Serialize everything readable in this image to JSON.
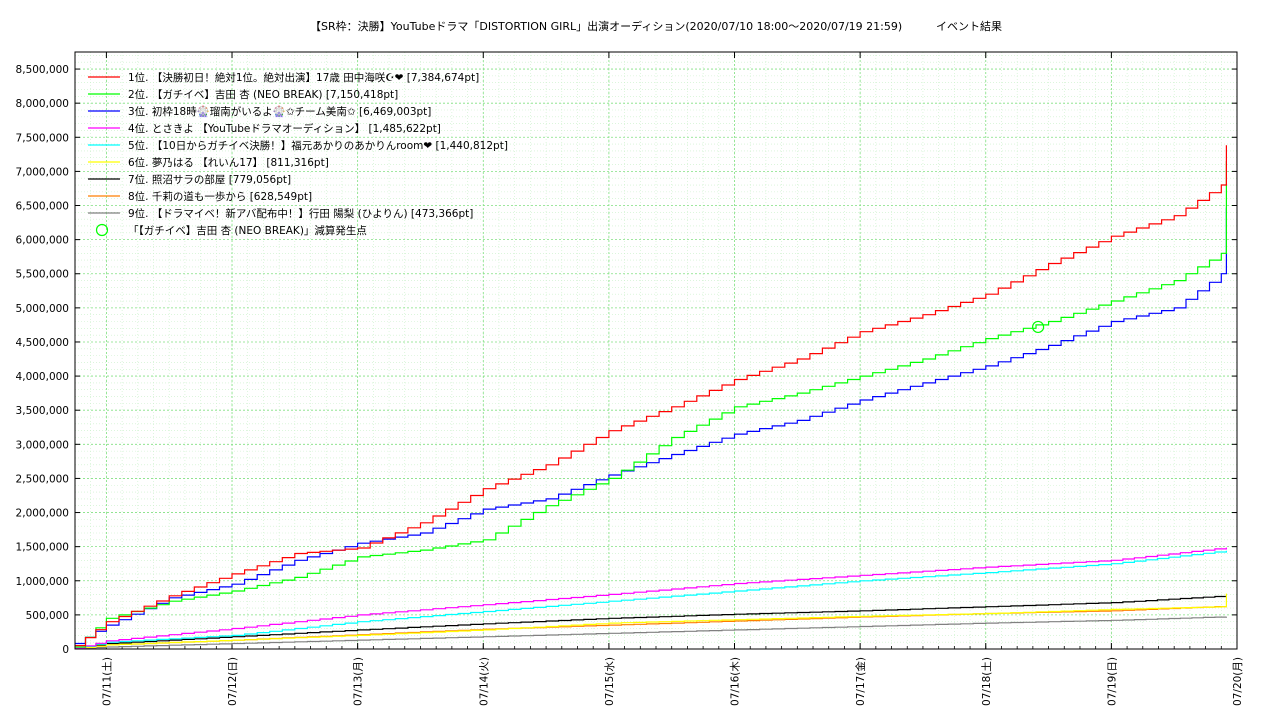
{
  "chart_data": {
    "type": "line",
    "title": "【SR枠：決勝】YouTubeドラマ「DISTORTION GIRL」出演オーディション(2020/07/10 18:00〜2020/07/19 21:59)",
    "subtitle": "イベント結果",
    "ylim": [
      0,
      8750000
    ],
    "yticks": [
      0,
      500000,
      1000000,
      1500000,
      2000000,
      2500000,
      3000000,
      3500000,
      4000000,
      4500000,
      5000000,
      5500000,
      6000000,
      6500000,
      7000000,
      7500000,
      8000000,
      8500000
    ],
    "ytick_labels": [
      "0",
      "500,000",
      "1,000,000",
      "1,500,000",
      "2,000,000",
      "2,500,000",
      "3,000,000",
      "3,500,000",
      "4,000,000",
      "4,500,000",
      "5,000,000",
      "5,500,000",
      "6,000,000",
      "6,500,000",
      "7,000,000",
      "7,500,000",
      "8,000,000",
      "8,500,000"
    ],
    "xlim": [
      "2020-07-10 18:00",
      "2020-07-20 00:00"
    ],
    "xticks": [
      "2020-07-11",
      "2020-07-12",
      "2020-07-13",
      "2020-07-14",
      "2020-07-15",
      "2020-07-16",
      "2020-07-17",
      "2020-07-18",
      "2020-07-19",
      "2020-07-20"
    ],
    "xtick_labels": [
      "07/11(土)",
      "07/12(日)",
      "07/13(月)",
      "07/14(火)",
      "07/15(水)",
      "07/16(木)",
      "07/17(金)",
      "07/18(土)",
      "07/19(日)",
      "07/20(月)"
    ],
    "grid": true,
    "legend_position": "top-left",
    "series": [
      {
        "name": "1位. 【決勝初日！絶対1位。絶対出演】17歳 田中海咲☪︎❤︎ [7,384,674pt]",
        "color": "#ff0000",
        "x": [
          "2020-07-10 18:00",
          "2020-07-11 00:00",
          "2020-07-11 12:00",
          "2020-07-12 00:00",
          "2020-07-12 12:00",
          "2020-07-13 00:00",
          "2020-07-13 12:00",
          "2020-07-14 00:00",
          "2020-07-14 12:00",
          "2020-07-15 00:00",
          "2020-07-15 12:00",
          "2020-07-16 00:00",
          "2020-07-16 12:00",
          "2020-07-17 00:00",
          "2020-07-17 12:00",
          "2020-07-18 00:00",
          "2020-07-18 12:00",
          "2020-07-19 00:00",
          "2020-07-19 12:00",
          "2020-07-19 21:00",
          "2020-07-19 21:59"
        ],
        "y": [
          50000,
          400000,
          780000,
          1100000,
          1400000,
          1480000,
          1850000,
          2350000,
          2700000,
          3200000,
          3550000,
          3950000,
          4250000,
          4650000,
          4900000,
          5200000,
          5650000,
          6050000,
          6350000,
          6800000,
          7384674
        ]
      },
      {
        "name": "2位. 【ガチイベ】吉田 杏 (NEO BREAK) [7,150,418pt]",
        "color": "#00ff00",
        "x": [
          "2020-07-10 18:00",
          "2020-07-11 00:00",
          "2020-07-11 12:00",
          "2020-07-12 00:00",
          "2020-07-12 12:00",
          "2020-07-13 00:00",
          "2020-07-13 12:00",
          "2020-07-14 00:00",
          "2020-07-14 12:00",
          "2020-07-15 00:00",
          "2020-07-15 12:00",
          "2020-07-16 00:00",
          "2020-07-16 12:00",
          "2020-07-17 00:00",
          "2020-07-17 12:00",
          "2020-07-18 00:00",
          "2020-07-18 12:00",
          "2020-07-19 00:00",
          "2020-07-19 12:00",
          "2020-07-19 21:00",
          "2020-07-19 21:59"
        ],
        "y": [
          30000,
          450000,
          700000,
          850000,
          1050000,
          1350000,
          1450000,
          1600000,
          2100000,
          2500000,
          3100000,
          3550000,
          3750000,
          4000000,
          4250000,
          4550000,
          4800000,
          5100000,
          5400000,
          5800000,
          7150418
        ]
      },
      {
        "name": "3位. 初枠18時🎡瑠南がいるよ🎡✩チーム美南✩ [6,469,003pt]",
        "color": "#0000ff",
        "x": [
          "2020-07-10 18:00",
          "2020-07-11 00:00",
          "2020-07-11 12:00",
          "2020-07-12 00:00",
          "2020-07-12 12:00",
          "2020-07-13 00:00",
          "2020-07-13 12:00",
          "2020-07-14 00:00",
          "2020-07-14 12:00",
          "2020-07-15 00:00",
          "2020-07-15 12:00",
          "2020-07-16 00:00",
          "2020-07-16 12:00",
          "2020-07-17 00:00",
          "2020-07-17 12:00",
          "2020-07-18 00:00",
          "2020-07-18 12:00",
          "2020-07-19 00:00",
          "2020-07-19 12:00",
          "2020-07-19 21:00",
          "2020-07-19 21:59"
        ],
        "y": [
          80000,
          350000,
          750000,
          950000,
          1300000,
          1550000,
          1700000,
          2050000,
          2200000,
          2550000,
          2850000,
          3150000,
          3350000,
          3650000,
          3900000,
          4150000,
          4450000,
          4800000,
          5000000,
          5500000,
          6469003
        ]
      },
      {
        "name": "4位. とさきよ 【YouTubeドラマオーディション】 [1,485,622pt]",
        "color": "#ff00ff",
        "x": [
          "2020-07-10 18:00",
          "2020-07-11 00:00",
          "2020-07-12 00:00",
          "2020-07-13 00:00",
          "2020-07-14 00:00",
          "2020-07-15 00:00",
          "2020-07-16 00:00",
          "2020-07-17 00:00",
          "2020-07-18 00:00",
          "2020-07-19 00:00",
          "2020-07-19 21:59"
        ],
        "y": [
          10000,
          120000,
          300000,
          500000,
          650000,
          800000,
          960000,
          1080000,
          1200000,
          1300000,
          1485622
        ]
      },
      {
        "name": "5位. 【10日からガチイベ決勝！】福元あかりのあかりんroom❤︎ [1,440,812pt]",
        "color": "#00ffff",
        "x": [
          "2020-07-10 18:00",
          "2020-07-11 00:00",
          "2020-07-12 00:00",
          "2020-07-13 00:00",
          "2020-07-14 00:00",
          "2020-07-15 00:00",
          "2020-07-16 00:00",
          "2020-07-17 00:00",
          "2020-07-18 00:00",
          "2020-07-19 00:00",
          "2020-07-19 21:59"
        ],
        "y": [
          10000,
          100000,
          200000,
          400000,
          550000,
          700000,
          850000,
          1000000,
          1120000,
          1250000,
          1440812
        ]
      },
      {
        "name": "6位. 夢乃はる 【れいん17】 [811,316pt]",
        "color": "#ffff00",
        "x": [
          "2020-07-10 18:00",
          "2020-07-11 00:00",
          "2020-07-12 00:00",
          "2020-07-13 00:00",
          "2020-07-14 00:00",
          "2020-07-15 00:00",
          "2020-07-16 00:00",
          "2020-07-17 00:00",
          "2020-07-18 00:00",
          "2020-07-19 00:00",
          "2020-07-19 21:00",
          "2020-07-19 21:59"
        ],
        "y": [
          5000,
          60000,
          130000,
          200000,
          280000,
          380000,
          430000,
          480000,
          520000,
          580000,
          620000,
          811316
        ]
      },
      {
        "name": "7位. 照沼サラの部屋 [779,056pt]",
        "color": "#000000",
        "x": [
          "2020-07-10 18:00",
          "2020-07-11 00:00",
          "2020-07-12 00:00",
          "2020-07-13 00:00",
          "2020-07-14 00:00",
          "2020-07-15 00:00",
          "2020-07-16 00:00",
          "2020-07-17 00:00",
          "2020-07-18 00:00",
          "2020-07-19 00:00",
          "2020-07-19 21:59"
        ],
        "y": [
          5000,
          80000,
          180000,
          280000,
          370000,
          450000,
          510000,
          560000,
          620000,
          680000,
          779056
        ]
      },
      {
        "name": "8位. 千莉の道も一歩から [628,549pt]",
        "color": "#ff7f00",
        "x": [
          "2020-07-10 18:00",
          "2020-07-11 00:00",
          "2020-07-12 00:00",
          "2020-07-13 00:00",
          "2020-07-14 00:00",
          "2020-07-15 00:00",
          "2020-07-16 00:00",
          "2020-07-17 00:00",
          "2020-07-18 00:00",
          "2020-07-19 00:00",
          "2020-07-19 21:59"
        ],
        "y": [
          5000,
          60000,
          130000,
          210000,
          290000,
          350000,
          410000,
          470000,
          520000,
          560000,
          628549
        ]
      },
      {
        "name": "9位. 【ドラマイベ！新アバ配布中！】行田 陽梨 (ひよりん) [473,366pt]",
        "color": "#808080",
        "x": [
          "2020-07-10 18:00",
          "2020-07-11 00:00",
          "2020-07-12 00:00",
          "2020-07-13 00:00",
          "2020-07-14 00:00",
          "2020-07-15 00:00",
          "2020-07-16 00:00",
          "2020-07-17 00:00",
          "2020-07-18 00:00",
          "2020-07-19 00:00",
          "2020-07-19 21:59"
        ],
        "y": [
          3000,
          30000,
          80000,
          130000,
          180000,
          230000,
          280000,
          330000,
          380000,
          420000,
          473366
        ]
      }
    ],
    "markers": [
      {
        "name": "「【ガチイベ】吉田 杏 (NEO BREAK)」減算発生点",
        "color": "#00ff00",
        "x": "2020-07-18 10:00",
        "y": 4720000
      }
    ]
  }
}
